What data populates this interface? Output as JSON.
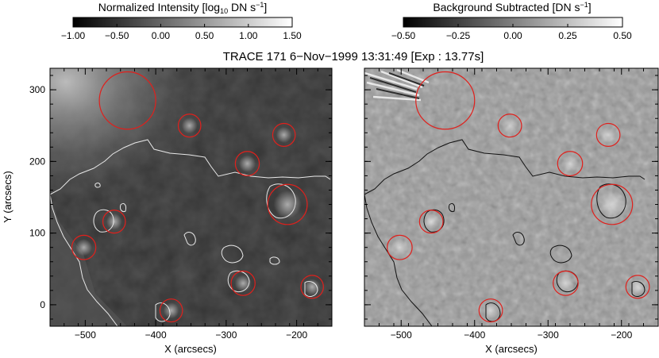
{
  "title": "TRACE 171  6−Nov−1999 13:31:49 [Exp : 13.77s]",
  "colorbar_left": {
    "label_main": "Normalized Intensity [log",
    "label_sub": "10",
    "label_unit": " DN s",
    "label_exp": "−1",
    "label_close": "]",
    "ticks": [
      "−1.00",
      "−0.50",
      "0.00",
      "0.50",
      "1.00",
      "1.50"
    ],
    "range": [
      -1.0,
      1.5
    ]
  },
  "colorbar_right": {
    "label_main": "Background Subtracted [DN s",
    "label_exp": "−1",
    "label_close": "]",
    "ticks": [
      "−0.50",
      "−0.25",
      "0.00",
      "0.25",
      "0.50"
    ],
    "range": [
      -0.5,
      0.5
    ]
  },
  "axes": {
    "xlabel": "X (arcsecs)",
    "ylabel": "Y (arcsecs)",
    "x_ticks": [
      "−500",
      "−400",
      "−300",
      "−200"
    ],
    "y_ticks": [
      "0",
      "100",
      "200",
      "300"
    ],
    "x_range": [
      -550,
      -150
    ],
    "y_range": [
      -30,
      330
    ]
  },
  "circles": [
    {
      "x": -440,
      "y": 285,
      "r": 40
    },
    {
      "x": -352,
      "y": 250,
      "r": 16
    },
    {
      "x": -218,
      "y": 237,
      "r": 16
    },
    {
      "x": -270,
      "y": 197,
      "r": 17
    },
    {
      "x": -213,
      "y": 140,
      "r": 28
    },
    {
      "x": -459,
      "y": 116,
      "r": 16
    },
    {
      "x": -502,
      "y": 80,
      "r": 17
    },
    {
      "x": -276,
      "y": 30,
      "r": 17
    },
    {
      "x": -178,
      "y": 25,
      "r": 16
    },
    {
      "x": -378,
      "y": -8,
      "r": 16
    }
  ],
  "colors": {
    "circle": "#e0201c",
    "contour_left": "#e8e8e8",
    "contour_right": "#111111"
  }
}
